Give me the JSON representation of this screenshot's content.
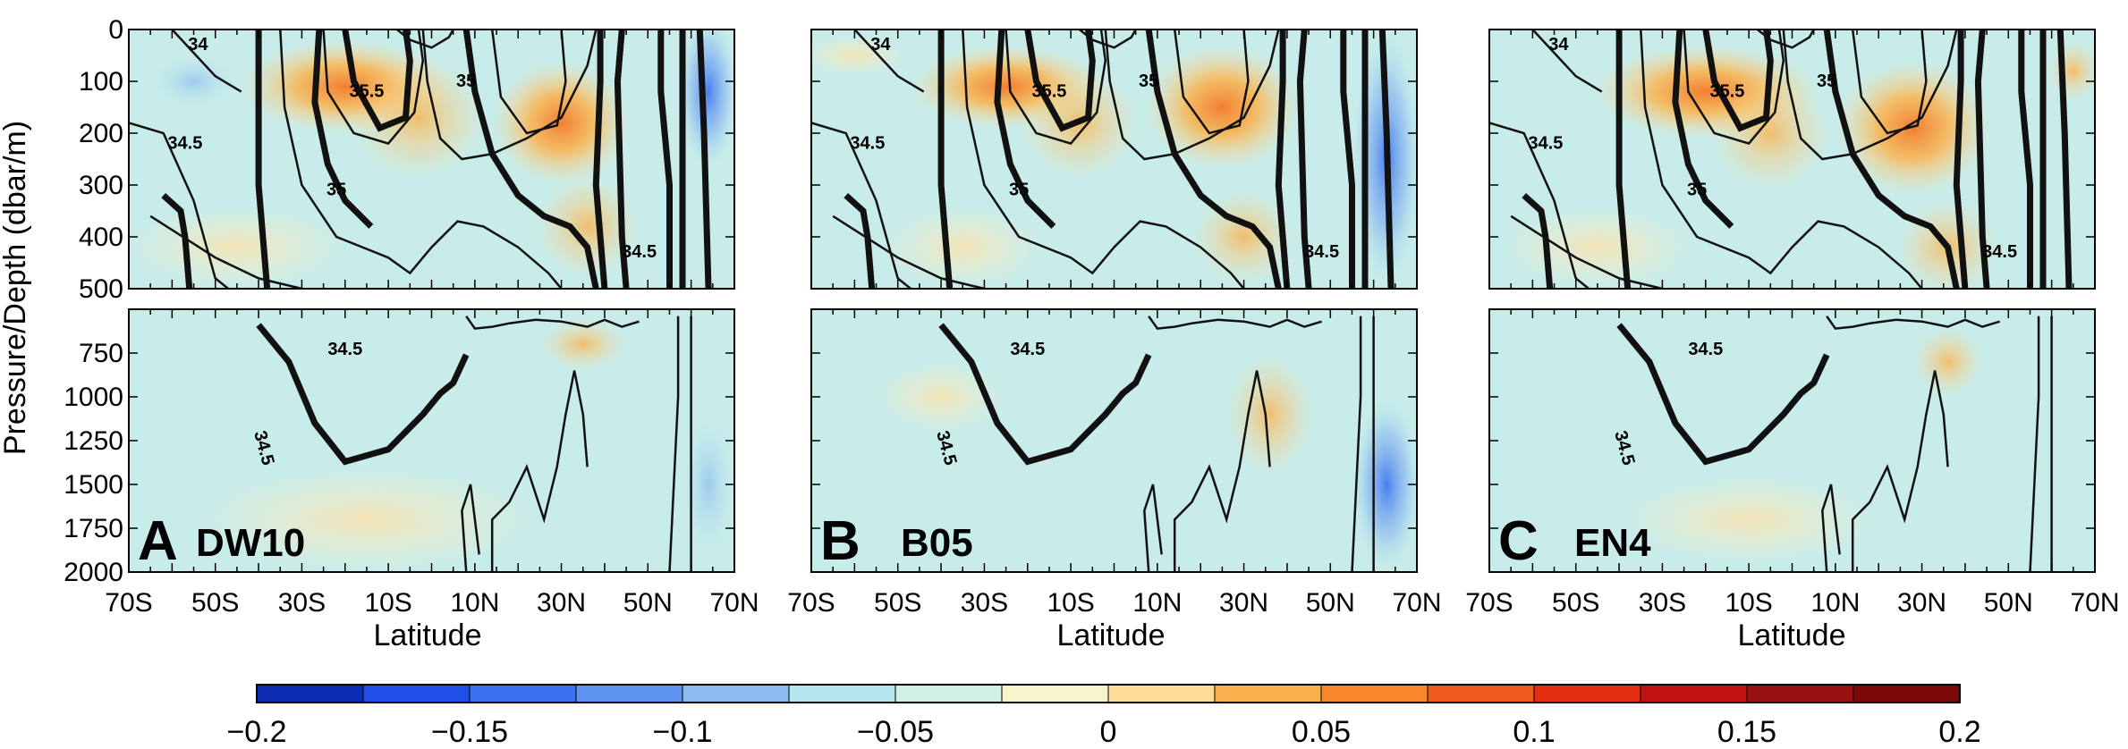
{
  "chart_data": {
    "type": "heatmap",
    "panels": [
      {
        "letter": "A",
        "name": "DW10"
      },
      {
        "letter": "B",
        "name": "B05"
      },
      {
        "letter": "C",
        "name": "EN4"
      }
    ],
    "xlabel": "Latitude",
    "ylabel": "Pressure/Depth (dbar/m)",
    "x_ticks": [
      "70S",
      "50S",
      "30S",
      "10S",
      "10N",
      "30N",
      "50N",
      "70N"
    ],
    "x_range": [
      -70,
      70
    ],
    "y_upper_range": [
      0,
      500
    ],
    "y_upper_ticks": [
      "0",
      "100",
      "200",
      "300",
      "400",
      "500"
    ],
    "y_lower_range": [
      500,
      2000
    ],
    "y_lower_ticks": [
      "750",
      "1000",
      "1250",
      "1500",
      "1750",
      "2000"
    ],
    "contour_labels_upper": [
      "34",
      "34.5",
      "35",
      "35.5",
      "35",
      "34.5"
    ],
    "contour_label_lower": "34.5",
    "colorbar": {
      "ticks": [
        "−0.2",
        "−0.15",
        "−0.1",
        "−0.05",
        "0",
        "0.05",
        "0.1",
        "0.15",
        "0.2"
      ],
      "range": [
        -0.2,
        0.2
      ],
      "colors": [
        "#0a2db4",
        "#1f4fe8",
        "#3a72f0",
        "#5d93ef",
        "#8cbbf0",
        "#b5e5ee",
        "#d2efe6",
        "#f9f3cc",
        "#fddc98",
        "#fbb24d",
        "#f8862c",
        "#f05a1c",
        "#e22d12",
        "#c01010",
        "#981010",
        "#7a0808"
      ]
    }
  }
}
